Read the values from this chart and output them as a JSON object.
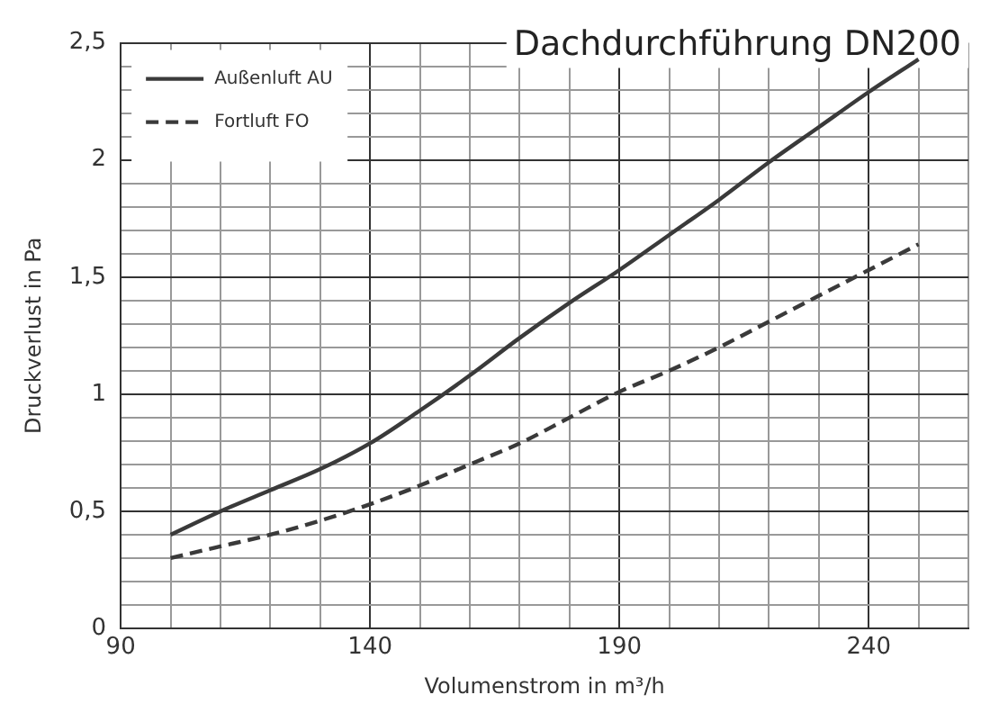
{
  "chart_data": {
    "type": "line",
    "title": "Dachdurchführung DN200",
    "xlabel": "Volumenstrom in m³/h",
    "ylabel": "Druckverlust in Pa",
    "x": [
      100,
      110,
      120,
      130,
      140,
      150,
      160,
      170,
      180,
      190,
      200,
      210,
      220,
      230,
      240,
      250
    ],
    "series": [
      {
        "name": "Außenluft AU",
        "color": "#3a3a3a",
        "line_style": "solid",
        "values": [
          0.4,
          0.5,
          0.59,
          0.68,
          0.79,
          0.93,
          1.08,
          1.24,
          1.39,
          1.53,
          1.68,
          1.83,
          1.99,
          2.14,
          2.29,
          2.43
        ]
      },
      {
        "name": "Fortluft FO",
        "color": "#3a3a3a",
        "line_style": "dashed",
        "values": [
          0.3,
          0.35,
          0.4,
          0.46,
          0.53,
          0.61,
          0.7,
          0.79,
          0.9,
          1.01,
          1.1,
          1.2,
          1.31,
          1.42,
          1.53,
          1.64
        ]
      }
    ],
    "xlim": [
      90,
      260
    ],
    "xticks": [
      90,
      {
        "value": 100,
        "label": null
      },
      {
        "value": 110,
        "label": null
      },
      {
        "value": 120,
        "label": null
      },
      {
        "value": 130,
        "label": null
      },
      140,
      {
        "value": 150,
        "label": null
      },
      {
        "value": 160,
        "label": null
      },
      {
        "value": 170,
        "label": null
      },
      {
        "value": 180,
        "label": null
      },
      190,
      {
        "value": 200,
        "label": null
      },
      {
        "value": 210,
        "label": null
      },
      {
        "value": 220,
        "label": null
      },
      {
        "value": 230,
        "label": null
      },
      240,
      {
        "value": 250,
        "label": null
      },
      {
        "value": 260,
        "label": null
      }
    ],
    "ylim": [
      0,
      2.5
    ],
    "yticks": [
      0,
      {
        "value": 0.1,
        "label": null
      },
      {
        "value": 0.2,
        "label": null
      },
      {
        "value": 0.3,
        "label": null
      },
      {
        "value": 0.4,
        "label": null
      },
      {
        "value": 0.5,
        "label": "0,5"
      },
      {
        "value": 0.6,
        "label": null
      },
      {
        "value": 0.7,
        "label": null
      },
      {
        "value": 0.8,
        "label": null
      },
      {
        "value": 0.9,
        "label": null
      },
      1,
      {
        "value": 1.1,
        "label": null
      },
      {
        "value": 1.2,
        "label": null
      },
      {
        "value": 1.3,
        "label": null
      },
      {
        "value": 1.4,
        "label": null
      },
      {
        "value": 1.5,
        "label": "1,5"
      },
      {
        "value": 1.6,
        "label": null
      },
      {
        "value": 1.7,
        "label": null
      },
      {
        "value": 1.8,
        "label": null
      },
      {
        "value": 1.9,
        "label": null
      },
      2,
      {
        "value": 2.1,
        "label": null
      },
      {
        "value": 2.2,
        "label": null
      },
      {
        "value": 2.3,
        "label": null
      },
      {
        "value": 2.4,
        "label": null
      },
      {
        "value": 2.5,
        "label": "2,5"
      }
    ],
    "grid": true,
    "legend": "top left",
    "marker": "none"
  }
}
